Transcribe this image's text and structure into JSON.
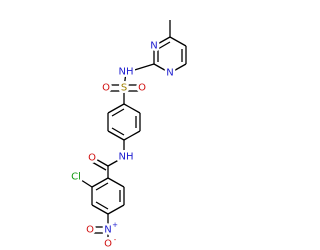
{
  "atoms": [
    {
      "symbol": "N"
    },
    {
      "symbol": "N"
    },
    {
      "symbol": "NH"
    },
    {
      "symbol": "S"
    },
    {
      "symbol": "O"
    },
    {
      "symbol": "O"
    },
    {
      "symbol": "NH"
    },
    {
      "symbol": "O"
    },
    {
      "symbol": "Cl"
    },
    {
      "symbol": "N",
      "charge": "+"
    },
    {
      "symbol": "O"
    },
    {
      "symbol": "O",
      "charge": "-"
    }
  ]
}
